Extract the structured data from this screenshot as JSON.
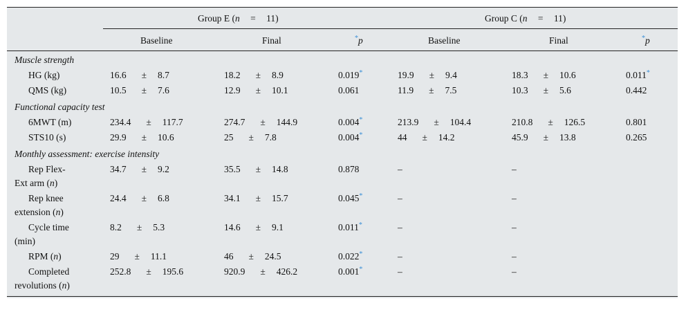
{
  "header": {
    "group_e": {
      "prefix": "Group E (",
      "n": "n",
      "eq": "=",
      "count": "11)"
    },
    "group_c": {
      "prefix": "Group C (",
      "n": "n",
      "eq": "=",
      "count": "11)"
    },
    "baseline": "Baseline",
    "final": "Final",
    "star": "*",
    "p": "p"
  },
  "sections": {
    "muscle": "Muscle strength",
    "functional": "Functional capacity test",
    "monthly": "Monthly assessment: exercise intensity"
  },
  "pm": "±",
  "dash": "–",
  "rows": {
    "hg": {
      "label": "HG (kg)",
      "eb": [
        "16.6",
        "8.7"
      ],
      "ef": [
        "18.2",
        "8.9"
      ],
      "ep": "0.019",
      "cb": [
        "19.9",
        "9.4"
      ],
      "cf": [
        "18.3",
        "10.6"
      ],
      "cp": "0.011"
    },
    "qms": {
      "label": "QMS (kg)",
      "eb": [
        "10.5",
        "7.6"
      ],
      "ef": [
        "12.9",
        "10.1"
      ],
      "ep": "0.061",
      "cb": [
        "11.9",
        "7.5"
      ],
      "cf": [
        "10.3",
        "5.6"
      ],
      "cp": "0.442"
    },
    "mwt": {
      "label": "6MWT (m)",
      "eb": [
        "234.4",
        "117.7"
      ],
      "ef": [
        "274.7",
        "144.9"
      ],
      "ep": "0.004",
      "cb": [
        "213.9",
        "104.4"
      ],
      "cf": [
        "210.8",
        "126.5"
      ],
      "cp": "0.801"
    },
    "sts": {
      "label": "STS10 (s)",
      "eb": [
        "29.9",
        "10.6"
      ],
      "ef": [
        "25",
        "7.8"
      ],
      "ep": "0.004",
      "cb": [
        "44",
        "14.2"
      ],
      "cf": [
        "45.9",
        "13.8"
      ],
      "cp": "0.265"
    },
    "flex": {
      "label1": "Rep Flex-",
      "label2": "Ext arm (",
      "labeln": "n",
      "labelend": ")",
      "eb": [
        "34.7",
        "9.2"
      ],
      "ef": [
        "35.5",
        "14.8"
      ],
      "ep": "0.878"
    },
    "knee": {
      "label1": "Rep knee",
      "label2": "extension (",
      "labeln": "n",
      "labelend": ")",
      "eb": [
        "24.4",
        "6.8"
      ],
      "ef": [
        "34.1",
        "15.7"
      ],
      "ep": "0.045"
    },
    "cycle": {
      "label1": "Cycle time",
      "label2": "(min)",
      "eb": [
        "8.2",
        "5.3"
      ],
      "ef": [
        "14.6",
        "9.1"
      ],
      "ep": "0.011"
    },
    "rpm": {
      "label": "RPM (",
      "labeln": "n",
      "labelend": ")",
      "eb": [
        "29",
        "11.1"
      ],
      "ef": [
        "46",
        "24.5"
      ],
      "ep": "0.022"
    },
    "rev": {
      "label1": "Completed",
      "label2": "revolutions (",
      "labeln": "n",
      "labelend": ")",
      "eb": [
        "252.8",
        "195.6"
      ],
      "ef": [
        "920.9",
        "426.2"
      ],
      "ep": "0.001"
    }
  }
}
